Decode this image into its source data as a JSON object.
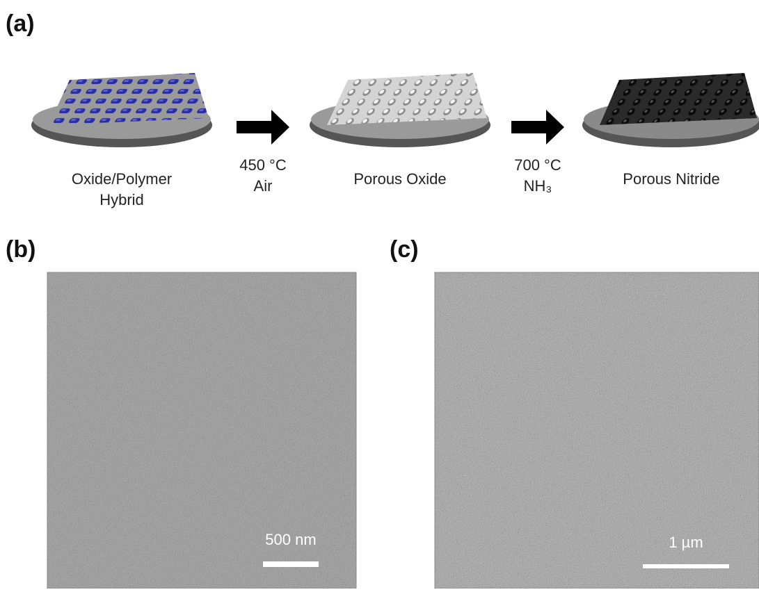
{
  "panels": {
    "a": {
      "label": "(a)",
      "steps": [
        {
          "label_lines": [
            "Oxide/Polymer",
            "Hybrid"
          ]
        },
        {
          "label_lines": [
            "Porous Oxide"
          ]
        },
        {
          "label_lines": [
            "Porous Nitride"
          ]
        }
      ],
      "arrows": [
        {
          "label_lines": [
            "450 °C",
            "Air"
          ]
        },
        {
          "label_lines": [
            "700 °C",
            "NH₃"
          ]
        }
      ]
    },
    "b": {
      "label": "(b)",
      "scale_bar": "500 nm"
    },
    "c": {
      "label": "(c)",
      "scale_bar": "1 µm"
    }
  }
}
